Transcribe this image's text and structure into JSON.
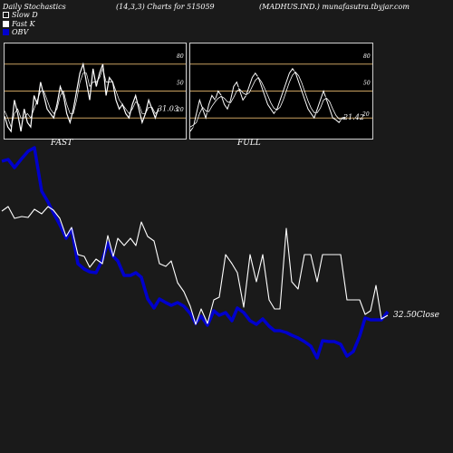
{
  "header": {
    "left": "Daily Stochastics",
    "center": "(14,3,3) Charts for 515059",
    "right": "(MADHUS.IND.) munafasutra.tbyjar.com"
  },
  "legend": [
    {
      "label": "Slow  D",
      "color": "#1a1a1a"
    },
    {
      "label": "Fast K",
      "color": "#ffffff"
    },
    {
      "label": "OBV",
      "color": "#0000cc"
    }
  ],
  "colors": {
    "obv": "#0000cc",
    "price": "#ffffff",
    "level": "#c8a060"
  },
  "chart_data": [
    {
      "type": "line",
      "panel": "fast",
      "caption": "FAST",
      "levels": [
        80,
        50,
        20
      ],
      "ylim": [
        0,
        100
      ],
      "last_value_label": "31.03",
      "series": [
        {
          "values": [
            22,
            10,
            5,
            40,
            25,
            5,
            30,
            15,
            10,
            45,
            35,
            60,
            45,
            30,
            25,
            20,
            35,
            55,
            45,
            25,
            15,
            30,
            50,
            70,
            80,
            60,
            40,
            75,
            55,
            70,
            80,
            45,
            65,
            60,
            40,
            30,
            35,
            25,
            20,
            35,
            45,
            30,
            15,
            25,
            40,
            30,
            20,
            31
          ]
        },
        {
          "values": [
            28,
            20,
            10,
            25,
            30,
            20,
            20,
            25,
            20,
            30,
            40,
            50,
            50,
            40,
            30,
            25,
            30,
            45,
            50,
            35,
            25,
            25,
            40,
            60,
            70,
            70,
            55,
            60,
            60,
            65,
            75,
            60,
            60,
            60,
            50,
            40,
            35,
            30,
            25,
            30,
            38,
            35,
            25,
            25,
            32,
            32,
            25,
            28
          ]
        }
      ]
    },
    {
      "type": "line",
      "panel": "full",
      "caption": "FULL",
      "levels": [
        80,
        50,
        20
      ],
      "ylim": [
        0,
        100
      ],
      "last_value_label": "21.42",
      "level_label": "20",
      "series": [
        {
          "values": [
            5,
            10,
            25,
            40,
            30,
            20,
            35,
            45,
            40,
            50,
            45,
            35,
            30,
            40,
            55,
            60,
            50,
            40,
            45,
            55,
            65,
            70,
            65,
            55,
            45,
            35,
            30,
            25,
            30,
            40,
            50,
            60,
            70,
            75,
            70,
            60,
            50,
            40,
            30,
            25,
            20,
            30,
            40,
            50,
            40,
            30,
            20,
            18,
            15,
            20,
            21
          ]
        },
        {
          "values": [
            8,
            10,
            18,
            30,
            32,
            25,
            28,
            38,
            40,
            45,
            45,
            40,
            35,
            37,
            48,
            55,
            53,
            45,
            45,
            50,
            60,
            66,
            66,
            58,
            50,
            40,
            33,
            28,
            28,
            35,
            45,
            55,
            65,
            72,
            72,
            65,
            55,
            45,
            35,
            28,
            24,
            27,
            35,
            45,
            42,
            35,
            25,
            20,
            17,
            19,
            20
          ]
        },
        {
          "values": [
            10,
            12,
            15,
            25,
            32,
            28,
            27,
            33,
            38,
            42,
            44,
            42,
            38,
            37,
            43,
            50,
            52,
            48,
            46,
            48,
            55,
            62,
            65,
            60,
            53,
            45,
            37,
            31,
            29,
            32,
            40,
            50,
            60,
            68,
            71,
            67,
            59,
            49,
            39,
            31,
            26,
            26,
            31,
            40,
            42,
            38,
            30,
            23,
            19,
            19,
            20
          ]
        }
      ]
    },
    {
      "type": "line",
      "panel": "main",
      "close_label": "32.50",
      "close_suffix": "Close",
      "series": [
        {
          "name": "price",
          "values": [
            [
              2,
              233
            ],
            [
              9,
              228
            ],
            [
              16,
              241
            ],
            [
              24,
              239
            ],
            [
              31,
              240
            ],
            [
              38,
              231
            ],
            [
              46,
              236
            ],
            [
              53,
              228
            ],
            [
              59,
              232
            ],
            [
              66,
              241
            ],
            [
              73,
              261
            ],
            [
              79,
              251
            ],
            [
              86,
              281
            ],
            [
              93,
              283
            ],
            [
              99,
              295
            ],
            [
              106,
              286
            ],
            [
              113,
              291
            ],
            [
              119,
              260
            ],
            [
              125,
              283
            ],
            [
              130,
              263
            ],
            [
              137,
              271
            ],
            [
              144,
              263
            ],
            [
              150,
              271
            ],
            [
              156,
              245
            ],
            [
              163,
              261
            ],
            [
              170,
              266
            ],
            [
              176,
              291
            ],
            [
              183,
              294
            ],
            [
              189,
              288
            ],
            [
              196,
              312
            ],
            [
              203,
              322
            ],
            [
              210,
              338
            ],
            [
              216,
              358
            ],
            [
              222,
              341
            ],
            [
              229,
              357
            ],
            [
              236,
              331
            ],
            [
              242,
              328
            ],
            [
              249,
              281
            ],
            [
              256,
              291
            ],
            [
              262,
              301
            ],
            [
              269,
              339
            ],
            [
              276,
              281
            ],
            [
              283,
              311
            ],
            [
              290,
              281
            ],
            [
              297,
              331
            ],
            [
              303,
              341
            ],
            [
              309,
              341
            ],
            [
              316,
              252
            ],
            [
              322,
              311
            ],
            [
              329,
              319
            ],
            [
              336,
              281
            ],
            [
              343,
              281
            ],
            [
              350,
              311
            ],
            [
              356,
              281
            ],
            [
              363,
              281
            ],
            [
              369,
              281
            ],
            [
              376,
              281
            ],
            [
              383,
              331
            ],
            [
              390,
              331
            ],
            [
              397,
              331
            ],
            [
              403,
              347
            ],
            [
              409,
              343
            ],
            [
              415,
              315
            ],
            [
              421,
              352
            ],
            [
              428,
              348
            ]
          ]
        },
        {
          "name": "obv",
          "values": [
            [
              2,
              178
            ],
            [
              9,
              176
            ],
            [
              16,
              185
            ],
            [
              24,
              175
            ],
            [
              31,
              167
            ],
            [
              38,
              163
            ],
            [
              46,
              211
            ],
            [
              53,
              223
            ],
            [
              59,
              235
            ],
            [
              66,
              248
            ],
            [
              73,
              263
            ],
            [
              79,
              253
            ],
            [
              86,
              291
            ],
            [
              93,
              297
            ],
            [
              99,
              300
            ],
            [
              106,
              301
            ],
            [
              113,
              287
            ],
            [
              119,
              268
            ],
            [
              125,
              283
            ],
            [
              130,
              288
            ],
            [
              137,
              304
            ],
            [
              144,
              304
            ],
            [
              150,
              301
            ],
            [
              156,
              306
            ],
            [
              163,
              330
            ],
            [
              170,
              340
            ],
            [
              176,
              330
            ],
            [
              183,
              334
            ],
            [
              189,
              337
            ],
            [
              196,
              334
            ],
            [
              203,
              338
            ],
            [
              210,
              346
            ],
            [
              216,
              357
            ],
            [
              222,
              349
            ],
            [
              229,
              359
            ],
            [
              236,
              343
            ],
            [
              242,
              348
            ],
            [
              249,
              345
            ],
            [
              256,
              354
            ],
            [
              262,
              340
            ],
            [
              269,
              345
            ],
            [
              276,
              354
            ],
            [
              283,
              358
            ],
            [
              290,
              352
            ],
            [
              297,
              360
            ],
            [
              303,
              365
            ],
            [
              309,
              365
            ],
            [
              316,
              367
            ],
            [
              322,
              370
            ],
            [
              329,
              373
            ],
            [
              336,
              377
            ],
            [
              343,
              382
            ],
            [
              350,
              395
            ],
            [
              356,
              376
            ],
            [
              363,
              377
            ],
            [
              369,
              377
            ],
            [
              376,
              380
            ],
            [
              383,
              393
            ],
            [
              390,
              388
            ],
            [
              397,
              371
            ],
            [
              403,
              351
            ],
            [
              409,
              353
            ],
            [
              415,
              353
            ],
            [
              421,
              353
            ],
            [
              428,
              344
            ]
          ]
        }
      ]
    }
  ]
}
